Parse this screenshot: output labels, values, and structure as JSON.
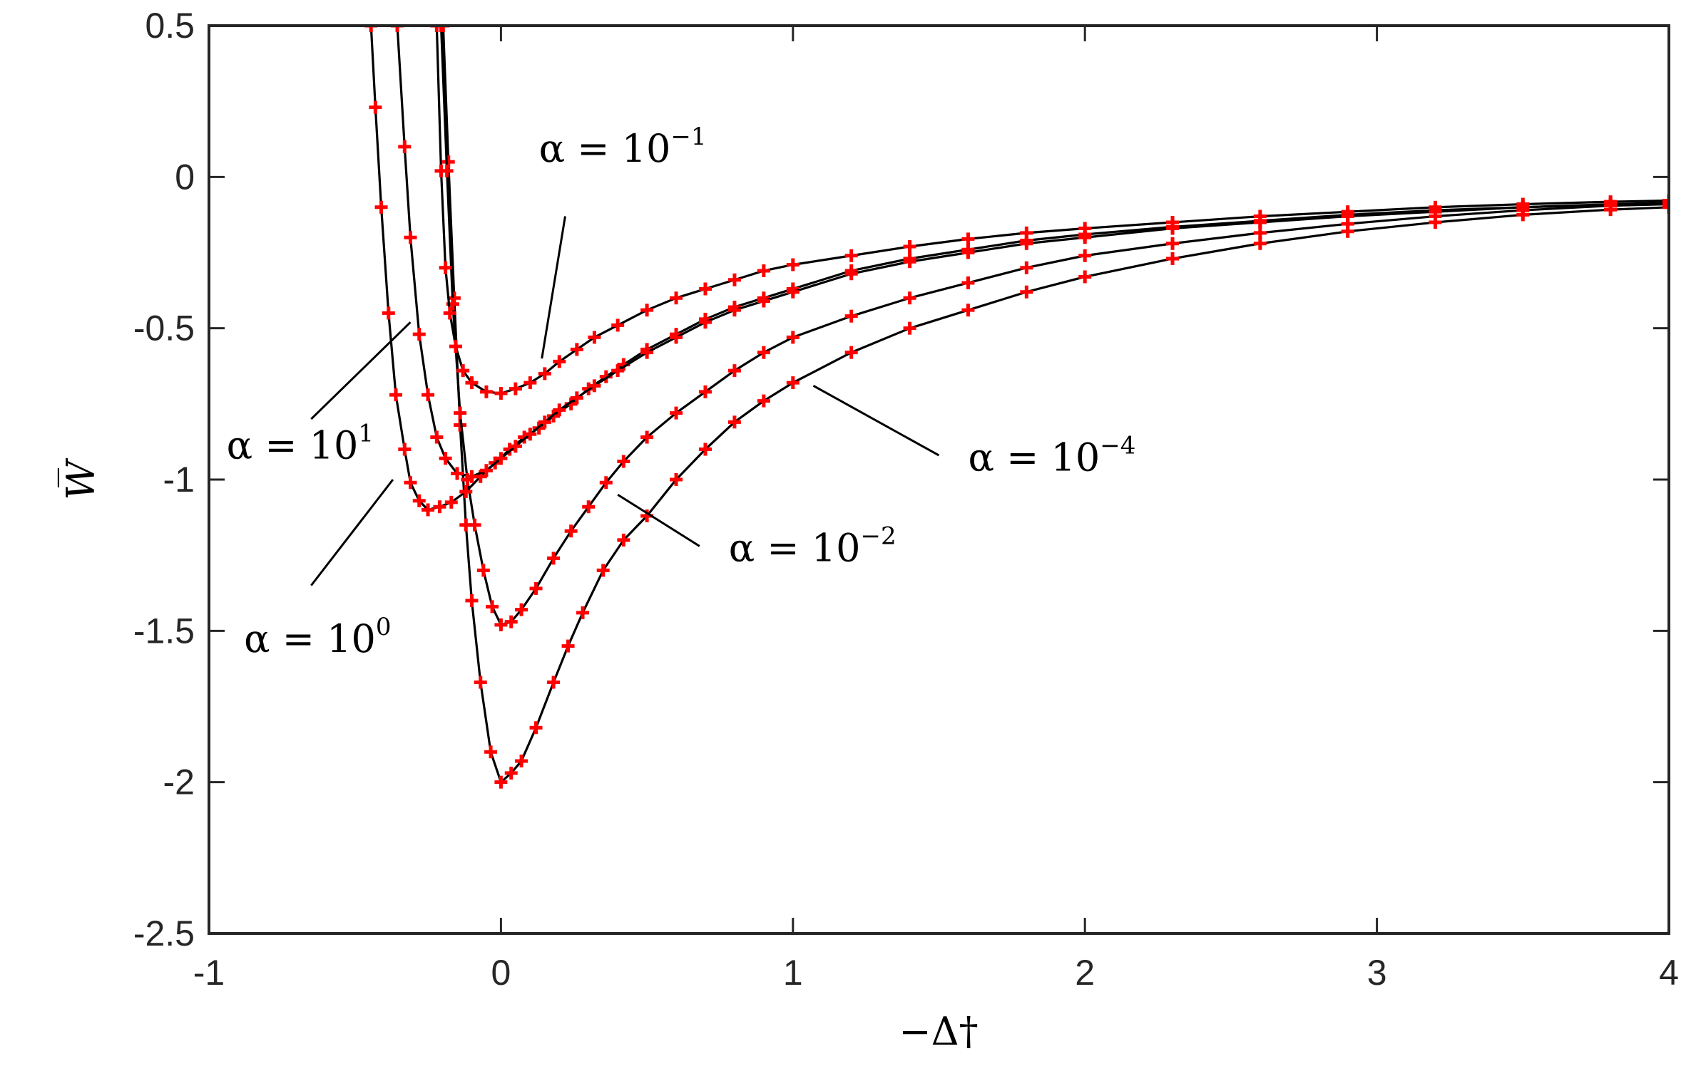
{
  "chart_data": {
    "type": "line",
    "title": "",
    "xlabel": "−Δ†",
    "ylabel": "W̅",
    "xlim": [
      -1,
      4
    ],
    "ylim": [
      -2.5,
      0.5
    ],
    "grid": false,
    "x_ticks": [
      "-1",
      "0",
      "1",
      "2",
      "3",
      "4"
    ],
    "y_ticks": [
      "0.5",
      "0",
      "-0.5",
      "-1",
      "-1.5",
      "-2",
      "-2.5"
    ],
    "line_color": "#000000",
    "marker_color": "#ff0000",
    "marker": "plus",
    "series": [
      {
        "label": "α = 10^-4",
        "alpha_base": "α = 10",
        "alpha_exp": "−4",
        "points": [
          [
            -0.198,
            0.5
          ],
          [
            -0.18,
            0.05
          ],
          [
            -0.16,
            -0.4
          ],
          [
            -0.14,
            -0.82
          ],
          [
            -0.12,
            -1.15
          ],
          [
            -0.1,
            -1.4
          ],
          [
            -0.07,
            -1.67
          ],
          [
            -0.035,
            -1.9
          ],
          [
            0.0,
            -2.0
          ],
          [
            0.035,
            -1.97
          ],
          [
            0.07,
            -1.93
          ],
          [
            0.12,
            -1.82
          ],
          [
            0.18,
            -1.67
          ],
          [
            0.23,
            -1.55
          ],
          [
            0.28,
            -1.44
          ],
          [
            0.35,
            -1.3
          ],
          [
            0.42,
            -1.2
          ],
          [
            0.5,
            -1.12
          ],
          [
            0.6,
            -1.0
          ],
          [
            0.7,
            -0.9
          ],
          [
            0.8,
            -0.81
          ],
          [
            0.9,
            -0.74
          ],
          [
            1.0,
            -0.68
          ],
          [
            1.2,
            -0.58
          ],
          [
            1.4,
            -0.5
          ],
          [
            1.6,
            -0.44
          ],
          [
            1.8,
            -0.38
          ],
          [
            2.0,
            -0.33
          ],
          [
            2.3,
            -0.27
          ],
          [
            2.6,
            -0.22
          ],
          [
            2.9,
            -0.18
          ],
          [
            3.2,
            -0.15
          ],
          [
            3.5,
            -0.125
          ],
          [
            3.8,
            -0.108
          ],
          [
            4.0,
            -0.1
          ]
        ],
        "label_anchor": [
          1.6,
          -0.97
        ],
        "leader_from": [
          1.5,
          -0.92
        ],
        "leader_to": [
          1.07,
          -0.69
        ]
      },
      {
        "label": "α = 10^-2",
        "alpha_base": "α = 10",
        "alpha_exp": "−2",
        "points": [
          [
            -0.205,
            0.5
          ],
          [
            -0.185,
            0.02
          ],
          [
            -0.165,
            -0.42
          ],
          [
            -0.14,
            -0.78
          ],
          [
            -0.115,
            -1.0
          ],
          [
            -0.09,
            -1.15
          ],
          [
            -0.06,
            -1.3
          ],
          [
            -0.03,
            -1.42
          ],
          [
            0.0,
            -1.48
          ],
          [
            0.035,
            -1.47
          ],
          [
            0.07,
            -1.43
          ],
          [
            0.12,
            -1.36
          ],
          [
            0.18,
            -1.26
          ],
          [
            0.24,
            -1.17
          ],
          [
            0.3,
            -1.09
          ],
          [
            0.36,
            -1.01
          ],
          [
            0.42,
            -0.94
          ],
          [
            0.5,
            -0.86
          ],
          [
            0.6,
            -0.78
          ],
          [
            0.7,
            -0.71
          ],
          [
            0.8,
            -0.64
          ],
          [
            0.9,
            -0.58
          ],
          [
            1.0,
            -0.53
          ],
          [
            1.2,
            -0.46
          ],
          [
            1.4,
            -0.4
          ],
          [
            1.6,
            -0.35
          ],
          [
            1.8,
            -0.3
          ],
          [
            2.0,
            -0.26
          ],
          [
            2.3,
            -0.22
          ],
          [
            2.6,
            -0.185
          ],
          [
            2.9,
            -0.155
          ],
          [
            3.2,
            -0.13
          ],
          [
            3.5,
            -0.11
          ],
          [
            3.8,
            -0.095
          ],
          [
            4.0,
            -0.09
          ]
        ],
        "label_anchor": [
          0.78,
          -1.27
        ],
        "leader_from": [
          0.68,
          -1.22
        ],
        "leader_to": [
          0.4,
          -1.05
        ]
      },
      {
        "label": "α = 10^-1",
        "alpha_base": "α = 10",
        "alpha_exp": "−1",
        "points": [
          [
            -0.22,
            0.5
          ],
          [
            -0.205,
            0.02
          ],
          [
            -0.19,
            -0.3
          ],
          [
            -0.175,
            -0.45
          ],
          [
            -0.155,
            -0.56
          ],
          [
            -0.13,
            -0.64
          ],
          [
            -0.1,
            -0.68
          ],
          [
            -0.05,
            -0.71
          ],
          [
            0.0,
            -0.715
          ],
          [
            0.05,
            -0.7
          ],
          [
            0.1,
            -0.68
          ],
          [
            0.15,
            -0.65
          ],
          [
            0.2,
            -0.61
          ],
          [
            0.26,
            -0.57
          ],
          [
            0.32,
            -0.53
          ],
          [
            0.4,
            -0.49
          ],
          [
            0.5,
            -0.44
          ],
          [
            0.6,
            -0.4
          ],
          [
            0.7,
            -0.37
          ],
          [
            0.8,
            -0.34
          ],
          [
            0.9,
            -0.31
          ],
          [
            1.0,
            -0.29
          ],
          [
            1.2,
            -0.26
          ],
          [
            1.4,
            -0.23
          ],
          [
            1.6,
            -0.205
          ],
          [
            1.8,
            -0.185
          ],
          [
            2.0,
            -0.17
          ],
          [
            2.3,
            -0.15
          ],
          [
            2.6,
            -0.13
          ],
          [
            2.9,
            -0.115
          ],
          [
            3.2,
            -0.1
          ],
          [
            3.5,
            -0.09
          ],
          [
            3.8,
            -0.082
          ],
          [
            4.0,
            -0.078
          ]
        ],
        "label_anchor": [
          0.13,
          0.05
        ],
        "leader_from": [
          0.22,
          -0.13
        ],
        "leader_to": [
          0.14,
          -0.6
        ]
      },
      {
        "label": "α = 10^0",
        "alpha_base": "α = 10",
        "alpha_exp": "0",
        "points": [
          [
            -0.445,
            0.5
          ],
          [
            -0.43,
            0.23
          ],
          [
            -0.41,
            -0.1
          ],
          [
            -0.385,
            -0.45
          ],
          [
            -0.36,
            -0.72
          ],
          [
            -0.33,
            -0.9
          ],
          [
            -0.31,
            -1.01
          ],
          [
            -0.28,
            -1.07
          ],
          [
            -0.25,
            -1.1
          ],
          [
            -0.21,
            -1.09
          ],
          [
            -0.17,
            -1.075
          ],
          [
            -0.12,
            -1.04
          ],
          [
            -0.07,
            -0.99
          ],
          [
            -0.02,
            -0.945
          ],
          [
            0.03,
            -0.9
          ],
          [
            0.08,
            -0.86
          ],
          [
            0.13,
            -0.83
          ],
          [
            0.18,
            -0.79
          ],
          [
            0.24,
            -0.75
          ],
          [
            0.3,
            -0.7
          ],
          [
            0.36,
            -0.66
          ],
          [
            0.42,
            -0.62
          ],
          [
            0.5,
            -0.57
          ],
          [
            0.6,
            -0.52
          ],
          [
            0.7,
            -0.47
          ],
          [
            0.8,
            -0.43
          ],
          [
            0.9,
            -0.4
          ],
          [
            1.0,
            -0.37
          ],
          [
            1.2,
            -0.31
          ],
          [
            1.4,
            -0.27
          ],
          [
            1.6,
            -0.24
          ],
          [
            1.8,
            -0.21
          ],
          [
            2.0,
            -0.19
          ],
          [
            2.3,
            -0.165
          ],
          [
            2.6,
            -0.145
          ],
          [
            2.9,
            -0.125
          ],
          [
            3.2,
            -0.11
          ],
          [
            3.5,
            -0.1
          ],
          [
            3.8,
            -0.09
          ],
          [
            4.0,
            -0.085
          ]
        ],
        "label_anchor": [
          -0.88,
          -1.57
        ],
        "leader_from": [
          -0.65,
          -1.35
        ],
        "leader_to": [
          -0.37,
          -1.0
        ]
      },
      {
        "label": "α = 10^1",
        "alpha_base": "α = 10",
        "alpha_exp": "1",
        "points": [
          [
            -0.355,
            0.5
          ],
          [
            -0.33,
            0.1
          ],
          [
            -0.31,
            -0.2
          ],
          [
            -0.28,
            -0.52
          ],
          [
            -0.25,
            -0.72
          ],
          [
            -0.22,
            -0.86
          ],
          [
            -0.19,
            -0.93
          ],
          [
            -0.15,
            -0.98
          ],
          [
            -0.1,
            -0.99
          ],
          [
            -0.05,
            -0.97
          ],
          [
            0.0,
            -0.93
          ],
          [
            0.05,
            -0.89
          ],
          [
            0.1,
            -0.85
          ],
          [
            0.15,
            -0.81
          ],
          [
            0.2,
            -0.77
          ],
          [
            0.26,
            -0.73
          ],
          [
            0.32,
            -0.69
          ],
          [
            0.4,
            -0.64
          ],
          [
            0.5,
            -0.58
          ],
          [
            0.6,
            -0.53
          ],
          [
            0.7,
            -0.48
          ],
          [
            0.8,
            -0.44
          ],
          [
            0.9,
            -0.41
          ],
          [
            1.0,
            -0.38
          ],
          [
            1.2,
            -0.32
          ],
          [
            1.4,
            -0.28
          ],
          [
            1.6,
            -0.25
          ],
          [
            1.8,
            -0.22
          ],
          [
            2.0,
            -0.2
          ],
          [
            2.3,
            -0.17
          ],
          [
            2.6,
            -0.15
          ],
          [
            2.9,
            -0.13
          ],
          [
            3.2,
            -0.115
          ],
          [
            3.5,
            -0.1
          ],
          [
            3.8,
            -0.092
          ],
          [
            4.0,
            -0.088
          ]
        ],
        "label_anchor": [
          -0.94,
          -0.93
        ],
        "leader_from": [
          -0.65,
          -0.8
        ],
        "leader_to": [
          -0.31,
          -0.48
        ]
      }
    ]
  }
}
